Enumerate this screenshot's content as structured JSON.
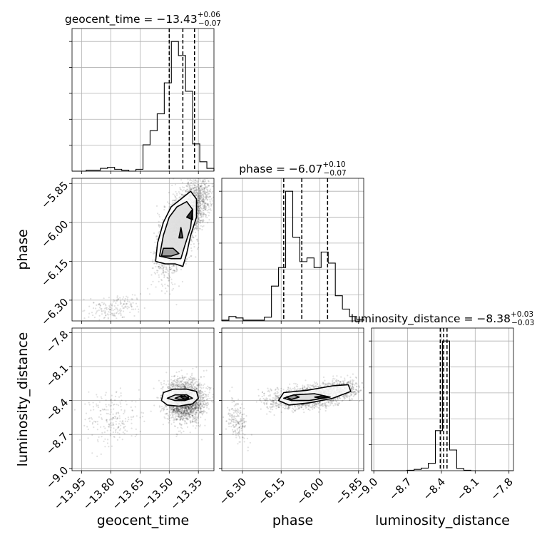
{
  "chart_data": {
    "type": "corner",
    "parameters": [
      {
        "name": "geocent_time",
        "label": "geocent_time",
        "median": -13.43,
        "upper": "+0.06",
        "lower": "−0.07",
        "title_base": "geocent_time = −13.43",
        "range": [
          -14.0,
          -13.27
        ],
        "ticks": [
          -13.95,
          -13.8,
          -13.65,
          -13.5,
          -13.35
        ],
        "tick_labels": [
          "−13.95",
          "−13.80",
          "−13.65",
          "−13.50",
          "−13.35"
        ],
        "quantiles": [
          -13.5,
          -13.43,
          -13.37
        ]
      },
      {
        "name": "phase",
        "label": "phase",
        "median": -6.07,
        "upper": "+0.10",
        "lower": "−0.07",
        "title_base": "phase = −6.07",
        "range": [
          -6.38,
          -5.83
        ],
        "ticks": [
          -6.3,
          -6.15,
          -6.0,
          -5.85
        ],
        "tick_labels": [
          "−6.30",
          "−6.15",
          "−6.00",
          "−5.85"
        ],
        "quantiles": [
          -6.14,
          -6.07,
          -5.97
        ]
      },
      {
        "name": "luminosity_distance",
        "label": "luminosity_distance",
        "median": -8.38,
        "upper": "+0.03",
        "lower": "−0.03",
        "title_base": "luminosity_distance = −8.38",
        "range": [
          -9.02,
          -7.76
        ],
        "ticks": [
          -9.0,
          -8.7,
          -8.4,
          -8.1,
          -7.8
        ],
        "tick_labels": [
          "−9.0",
          "−8.7",
          "−8.4",
          "−8.1",
          "−7.8"
        ],
        "quantiles": [
          -8.41,
          -8.38,
          -8.35
        ]
      }
    ],
    "histograms": [
      {
        "param": "geocent_time",
        "edges": [
          -14.0,
          -13.9635,
          -13.927,
          -13.8905,
          -13.854,
          -13.8175,
          -13.781,
          -13.7445,
          -13.708,
          -13.6715,
          -13.635,
          -13.5985,
          -13.562,
          -13.5255,
          -13.489,
          -13.4525,
          -13.416,
          -13.3795,
          -13.343,
          -13.3065,
          -13.27
        ],
        "counts": [
          0,
          0,
          1,
          1,
          3,
          4,
          2,
          1,
          0,
          2,
          28,
          43,
          61,
          94,
          138,
          123,
          85,
          29,
          10,
          3
        ]
      },
      {
        "param": "phase",
        "edges": [
          -6.38,
          -6.3525,
          -6.325,
          -6.2975,
          -6.27,
          -6.2425,
          -6.215,
          -6.1875,
          -6.16,
          -6.1325,
          -6.105,
          -6.0775,
          -6.05,
          -6.0225,
          -5.995,
          -5.9675,
          -5.94,
          -5.9125,
          -5.885,
          -5.8575,
          -5.83
        ],
        "counts": [
          1,
          6,
          4,
          1,
          1,
          1,
          5,
          47,
          72,
          175,
          113,
          80,
          85,
          72,
          93,
          78,
          34,
          16,
          6,
          2
        ]
      },
      {
        "param": "luminosity_distance",
        "edges": [
          -9.02,
          -8.957,
          -8.894,
          -8.831,
          -8.768,
          -8.705,
          -8.642,
          -8.579,
          -8.516,
          -8.453,
          -8.39,
          -8.327,
          -8.264,
          -8.201,
          -8.138,
          -8.075,
          -8.012,
          -7.949,
          -7.886,
          -7.823,
          -7.76
        ],
        "counts": [
          0,
          0,
          0,
          0,
          0,
          1,
          3,
          6,
          17,
          93,
          301,
          48,
          5,
          1,
          0,
          0,
          0,
          0,
          0,
          0
        ]
      }
    ],
    "pairs": [
      {
        "x": "geocent_time",
        "y": "phase",
        "levels": [
          [
            [
              -13.57,
              -6.15
            ],
            [
              -13.56,
              -6.08
            ],
            [
              -13.53,
              -6.0
            ],
            [
              -13.49,
              -5.94
            ],
            [
              -13.44,
              -5.91
            ],
            [
              -13.39,
              -5.88
            ],
            [
              -13.36,
              -5.91
            ],
            [
              -13.36,
              -5.98
            ],
            [
              -13.39,
              -6.05
            ],
            [
              -13.41,
              -6.12
            ],
            [
              -13.43,
              -6.17
            ],
            [
              -13.47,
              -6.16
            ],
            [
              -13.52,
              -6.16
            ]
          ],
          [
            [
              -13.55,
              -6.13
            ],
            [
              -13.53,
              -6.05
            ],
            [
              -13.5,
              -5.98
            ],
            [
              -13.46,
              -5.94
            ],
            [
              -13.41,
              -5.92
            ],
            [
              -13.38,
              -5.95
            ],
            [
              -13.39,
              -6.02
            ],
            [
              -13.42,
              -6.09
            ],
            [
              -13.44,
              -6.14
            ],
            [
              -13.49,
              -6.14
            ]
          ],
          [
            [
              -13.54,
              -6.13
            ],
            [
              -13.53,
              -6.1
            ],
            [
              -13.48,
              -6.1
            ],
            [
              -13.45,
              -6.12
            ],
            [
              -13.49,
              -6.13
            ]
          ],
          [
            [
              -13.45,
              -6.06
            ],
            [
              -13.44,
              -6.02
            ],
            [
              -13.43,
              -6.06
            ]
          ],
          [
            [
              -13.41,
              -5.98
            ],
            [
              -13.38,
              -5.95
            ],
            [
              -13.38,
              -5.99
            ]
          ]
        ],
        "clusters": [
          {
            "cx": -13.45,
            "cy": -6.03,
            "sx": 0.055,
            "sy": 0.085,
            "n": 1800,
            "rho": 0.6
          },
          {
            "cx": -13.36,
            "cy": -5.93,
            "sx": 0.035,
            "sy": 0.05,
            "n": 700,
            "rho": 0.3
          },
          {
            "cx": -13.79,
            "cy": -6.33,
            "sx": 0.07,
            "sy": 0.025,
            "n": 170,
            "rho": 0.3
          }
        ]
      },
      {
        "x": "geocent_time",
        "y": "luminosity_distance",
        "levels": [
          [
            [
              -13.54,
              -8.4
            ],
            [
              -13.53,
              -8.33
            ],
            [
              -13.48,
              -8.3
            ],
            [
              -13.41,
              -8.3
            ],
            [
              -13.36,
              -8.32
            ],
            [
              -13.35,
              -8.38
            ],
            [
              -13.38,
              -8.43
            ],
            [
              -13.45,
              -8.45
            ],
            [
              -13.51,
              -8.44
            ]
          ],
          [
            [
              -13.51,
              -8.38
            ],
            [
              -13.47,
              -8.35
            ],
            [
              -13.41,
              -8.35
            ],
            [
              -13.38,
              -8.38
            ],
            [
              -13.42,
              -8.4
            ],
            [
              -13.47,
              -8.4
            ]
          ],
          [
            [
              -13.47,
              -8.38
            ],
            [
              -13.44,
              -8.36
            ],
            [
              -13.4,
              -8.37
            ],
            [
              -13.42,
              -8.39
            ],
            [
              -13.45,
              -8.39
            ]
          ],
          [
            [
              -13.44,
              -8.37
            ],
            [
              -13.42,
              -8.36
            ],
            [
              -13.4,
              -8.38
            ],
            [
              -13.42,
              -8.39
            ]
          ]
        ],
        "clusters": [
          {
            "cx": -13.42,
            "cy": -8.4,
            "sx": 0.05,
            "sy": 0.09,
            "n": 2100,
            "rho": 0.0
          },
          {
            "cx": -13.79,
            "cy": -8.57,
            "sx": 0.07,
            "sy": 0.12,
            "n": 220,
            "rho": 0.2
          }
        ]
      },
      {
        "x": "phase",
        "y": "luminosity_distance",
        "levels": [
          [
            [
              -6.16,
              -8.4
            ],
            [
              -6.14,
              -8.33
            ],
            [
              -6.05,
              -8.31
            ],
            [
              -5.95,
              -8.27
            ],
            [
              -5.89,
              -8.26
            ],
            [
              -5.88,
              -8.32
            ],
            [
              -5.95,
              -8.38
            ],
            [
              -6.04,
              -8.42
            ],
            [
              -6.12,
              -8.44
            ]
          ],
          [
            [
              -6.14,
              -8.38
            ],
            [
              -6.1,
              -8.35
            ],
            [
              -6.02,
              -8.34
            ],
            [
              -5.96,
              -8.37
            ],
            [
              -6.04,
              -8.4
            ],
            [
              -6.11,
              -8.4
            ]
          ],
          [
            [
              -6.13,
              -8.37
            ],
            [
              -6.1,
              -8.35
            ],
            [
              -6.08,
              -8.37
            ],
            [
              -6.11,
              -8.39
            ]
          ],
          [
            [
              -6.02,
              -8.37
            ],
            [
              -5.99,
              -8.36
            ],
            [
              -5.97,
              -8.37
            ],
            [
              -6.0,
              -8.38
            ]
          ]
        ],
        "clusters": [
          {
            "cx": -6.06,
            "cy": -8.37,
            "sx": 0.07,
            "sy": 0.05,
            "n": 1400,
            "rho": 0.35
          },
          {
            "cx": -5.93,
            "cy": -8.31,
            "sx": 0.04,
            "sy": 0.05,
            "n": 500,
            "rho": 0.2
          },
          {
            "cx": -6.32,
            "cy": -8.58,
            "sx": 0.02,
            "sy": 0.09,
            "n": 180,
            "rho": -0.3
          }
        ]
      }
    ]
  }
}
